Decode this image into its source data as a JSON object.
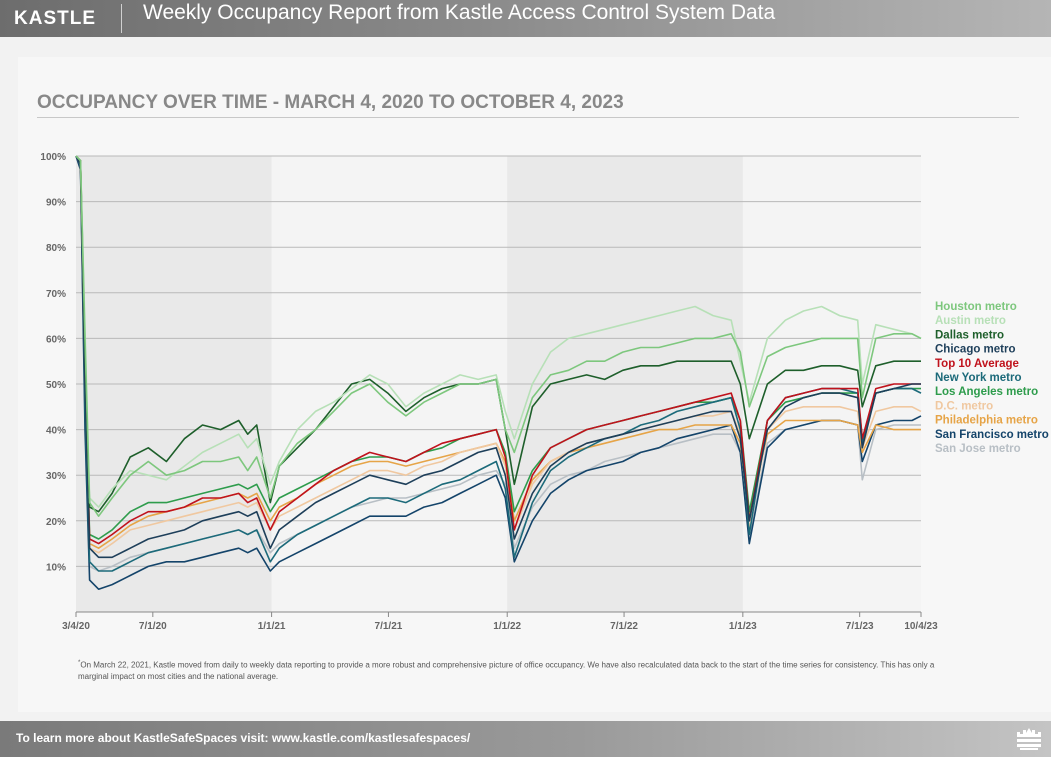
{
  "header": {
    "logo": "KASTLE",
    "title": "Weekly Occupancy Report from Kastle Access Control System Data"
  },
  "footnote": {
    "marker": "*",
    "text": "On March 22, 2021, Kastle moved from daily to weekly data reporting to provide a more robust and comprehensive picture of office occupancy. We have also recalculated data back to the start of the time series for consistency. This has only a marginal impact on most cities and the national average."
  },
  "footer": {
    "text": "To learn more about KastleSafeSpaces visit: www.kastle.com/kastlesafespaces/",
    "icon": "kastle-castle-icon"
  },
  "chart_data": {
    "type": "line",
    "title": "OCCUPANCY OVER TIME - MARCH 4, 2020 TO OCTOBER 4, 2023",
    "xlabel": "",
    "ylabel": "",
    "ylim": [
      0,
      100
    ],
    "yticks": [
      {
        "value": 100,
        "label": "100%"
      },
      {
        "value": 90,
        "label": "90%"
      },
      {
        "value": 80,
        "label": "80%"
      },
      {
        "value": 70,
        "label": "70%"
      },
      {
        "value": 60,
        "label": "60%"
      },
      {
        "value": 50,
        "label": "50%"
      },
      {
        "value": 40,
        "label": "40%"
      },
      {
        "value": 30,
        "label": "30%"
      },
      {
        "value": 20,
        "label": "20%"
      },
      {
        "value": 10,
        "label": "10%"
      }
    ],
    "xticks": [
      {
        "date": "2020-03-04",
        "label": "3/4/20"
      },
      {
        "date": "2020-07-01",
        "label": "7/1/20"
      },
      {
        "date": "2021-01-01",
        "label": "1/1/21"
      },
      {
        "date": "2021-07-01",
        "label": "7/1/21"
      },
      {
        "date": "2022-01-01",
        "label": "1/1/22"
      },
      {
        "date": "2022-07-01",
        "label": "7/1/22"
      },
      {
        "date": "2023-01-01",
        "label": "1/1/23"
      },
      {
        "date": "2023-07-01",
        "label": "7/1/23"
      },
      {
        "date": "2023-10-04",
        "label": "10/4/23"
      }
    ],
    "shaded_bands": [
      {
        "from": "2020-03-04",
        "to": "2021-01-01"
      },
      {
        "from": "2022-01-01",
        "to": "2023-01-01"
      }
    ],
    "grid": true,
    "legend_position": "right",
    "x": [
      "2020-03-04",
      "2020-03-11",
      "2020-03-18",
      "2020-03-25",
      "2020-04-08",
      "2020-04-29",
      "2020-05-27",
      "2020-06-24",
      "2020-07-22",
      "2020-08-19",
      "2020-09-16",
      "2020-10-14",
      "2020-11-11",
      "2020-11-25",
      "2020-12-09",
      "2020-12-30",
      "2021-01-13",
      "2021-02-10",
      "2021-03-10",
      "2021-04-07",
      "2021-05-05",
      "2021-06-02",
      "2021-06-30",
      "2021-07-28",
      "2021-08-25",
      "2021-09-22",
      "2021-10-20",
      "2021-11-17",
      "2021-12-15",
      "2021-12-29",
      "2022-01-12",
      "2022-02-09",
      "2022-03-09",
      "2022-04-06",
      "2022-05-04",
      "2022-06-01",
      "2022-06-29",
      "2022-07-27",
      "2022-08-24",
      "2022-09-21",
      "2022-10-19",
      "2022-11-16",
      "2022-12-14",
      "2022-12-28",
      "2023-01-11",
      "2023-02-08",
      "2023-03-08",
      "2023-04-05",
      "2023-05-03",
      "2023-05-31",
      "2023-06-28",
      "2023-07-05",
      "2023-07-26",
      "2023-08-23",
      "2023-09-20",
      "2023-10-04"
    ],
    "series": [
      {
        "name": "Houston metro",
        "color": "#7dc77d",
        "values": [
          100,
          99,
          60,
          24,
          21,
          25,
          30,
          33,
          30,
          31,
          33,
          33,
          34,
          31,
          34,
          25,
          32,
          37,
          40,
          44,
          48,
          50,
          46,
          43,
          46,
          48,
          50,
          50,
          51,
          40,
          35,
          47,
          52,
          53,
          55,
          55,
          57,
          58,
          58,
          59,
          60,
          60,
          61,
          57,
          45,
          56,
          58,
          59,
          60,
          60,
          60,
          47,
          60,
          61,
          61,
          60
        ]
      },
      {
        "name": "Austin metro",
        "color": "#b7e0b7",
        "values": [
          100,
          99,
          62,
          25,
          23,
          27,
          31,
          30,
          29,
          32,
          35,
          37,
          39,
          36,
          38,
          28,
          33,
          40,
          44,
          46,
          49,
          52,
          50,
          45,
          48,
          50,
          52,
          51,
          52,
          44,
          38,
          50,
          57,
          60,
          61,
          62,
          63,
          64,
          65,
          66,
          67,
          65,
          64,
          55,
          46,
          60,
          64,
          66,
          67,
          65,
          64,
          50,
          63,
          62,
          61,
          60
        ]
      },
      {
        "name": "Dallas metro",
        "color": "#1e5f2b",
        "values": [
          100,
          99,
          58,
          23,
          22,
          26,
          34,
          36,
          33,
          38,
          41,
          40,
          42,
          39,
          41,
          24,
          32,
          36,
          40,
          45,
          50,
          51,
          48,
          44,
          47,
          49,
          50,
          50,
          51,
          40,
          28,
          45,
          50,
          51,
          52,
          51,
          53,
          54,
          54,
          55,
          55,
          55,
          55,
          50,
          38,
          50,
          53,
          53,
          54,
          54,
          53,
          45,
          54,
          55,
          55,
          55
        ]
      },
      {
        "name": "Chicago metro",
        "color": "#1e3f5a",
        "values": [
          100,
          98,
          50,
          14,
          12,
          12,
          14,
          16,
          17,
          18,
          20,
          21,
          22,
          21,
          22,
          14,
          18,
          21,
          24,
          26,
          28,
          30,
          29,
          28,
          30,
          31,
          33,
          35,
          36,
          30,
          16,
          26,
          32,
          35,
          37,
          38,
          39,
          40,
          41,
          42,
          43,
          44,
          44,
          38,
          20,
          40,
          45,
          47,
          48,
          48,
          47,
          36,
          48,
          49,
          50,
          50
        ]
      },
      {
        "name": "Top 10 Average",
        "color": "#c0121c",
        "values": [
          100,
          99,
          52,
          16,
          15,
          17,
          20,
          22,
          22,
          23,
          25,
          25,
          26,
          24,
          25,
          18,
          22,
          25,
          28,
          31,
          33,
          35,
          34,
          33,
          35,
          37,
          38,
          39,
          40,
          34,
          18,
          30,
          36,
          38,
          40,
          41,
          42,
          43,
          44,
          45,
          46,
          47,
          48,
          42,
          20,
          42,
          47,
          48,
          49,
          49,
          49,
          38,
          49,
          50,
          50,
          50
        ]
      },
      {
        "name": "New York metro",
        "color": "#1c6a7a",
        "values": [
          100,
          98,
          45,
          11,
          9,
          9,
          11,
          13,
          14,
          15,
          16,
          17,
          18,
          17,
          18,
          11,
          14,
          17,
          19,
          21,
          23,
          25,
          25,
          24,
          26,
          28,
          29,
          31,
          33,
          27,
          12,
          24,
          31,
          34,
          36,
          38,
          39,
          41,
          42,
          44,
          45,
          46,
          47,
          40,
          17,
          42,
          47,
          48,
          49,
          49,
          48,
          37,
          48,
          49,
          49,
          48
        ]
      },
      {
        "name": "Los Angeles metro",
        "color": "#2e9c4c",
        "values": [
          100,
          99,
          54,
          17,
          16,
          18,
          22,
          24,
          24,
          25,
          26,
          27,
          28,
          27,
          28,
          22,
          25,
          27,
          29,
          31,
          33,
          34,
          34,
          33,
          35,
          36,
          38,
          39,
          40,
          35,
          22,
          31,
          36,
          38,
          40,
          41,
          42,
          43,
          44,
          45,
          46,
          46,
          47,
          42,
          22,
          42,
          46,
          47,
          48,
          48,
          48,
          38,
          48,
          49,
          49,
          49
        ]
      },
      {
        "name": "D.C. metro",
        "color": "#f0c8a0",
        "values": [
          100,
          98,
          50,
          14,
          13,
          15,
          18,
          19,
          20,
          21,
          22,
          23,
          24,
          23,
          24,
          18,
          21,
          23,
          25,
          27,
          29,
          31,
          31,
          30,
          32,
          33,
          35,
          36,
          37,
          32,
          18,
          28,
          33,
          35,
          37,
          38,
          39,
          40,
          41,
          42,
          43,
          43,
          44,
          39,
          18,
          40,
          44,
          45,
          45,
          45,
          44,
          36,
          44,
          45,
          45,
          44
        ]
      },
      {
        "name": "Philadelphia metro",
        "color": "#e6a447",
        "values": [
          100,
          99,
          52,
          15,
          14,
          16,
          19,
          21,
          22,
          23,
          24,
          25,
          26,
          25,
          26,
          20,
          23,
          25,
          28,
          30,
          32,
          33,
          33,
          32,
          33,
          34,
          35,
          36,
          37,
          33,
          20,
          29,
          33,
          35,
          36,
          37,
          38,
          39,
          40,
          40,
          41,
          41,
          41,
          37,
          21,
          39,
          42,
          42,
          42,
          42,
          41,
          35,
          41,
          40,
          40,
          40
        ]
      },
      {
        "name": "San Francisco metro",
        "color": "#14446a",
        "values": [
          100,
          97,
          40,
          7,
          5,
          6,
          8,
          10,
          11,
          11,
          12,
          13,
          14,
          13,
          14,
          9,
          11,
          13,
          15,
          17,
          19,
          21,
          21,
          21,
          23,
          24,
          26,
          28,
          30,
          25,
          11,
          20,
          26,
          29,
          31,
          32,
          33,
          35,
          36,
          38,
          39,
          40,
          41,
          35,
          15,
          36,
          40,
          41,
          42,
          42,
          41,
          33,
          41,
          42,
          42,
          43
        ]
      },
      {
        "name": "San Jose metro",
        "color": "#b8bfc5",
        "values": [
          100,
          97,
          42,
          10,
          9,
          10,
          12,
          13,
          14,
          15,
          16,
          17,
          18,
          17,
          18,
          13,
          15,
          17,
          19,
          21,
          23,
          24,
          25,
          25,
          26,
          27,
          28,
          30,
          31,
          28,
          14,
          23,
          28,
          30,
          31,
          33,
          34,
          35,
          36,
          37,
          38,
          39,
          39,
          35,
          16,
          37,
          40,
          41,
          42,
          42,
          41,
          29,
          40,
          41,
          41,
          41
        ]
      }
    ]
  }
}
